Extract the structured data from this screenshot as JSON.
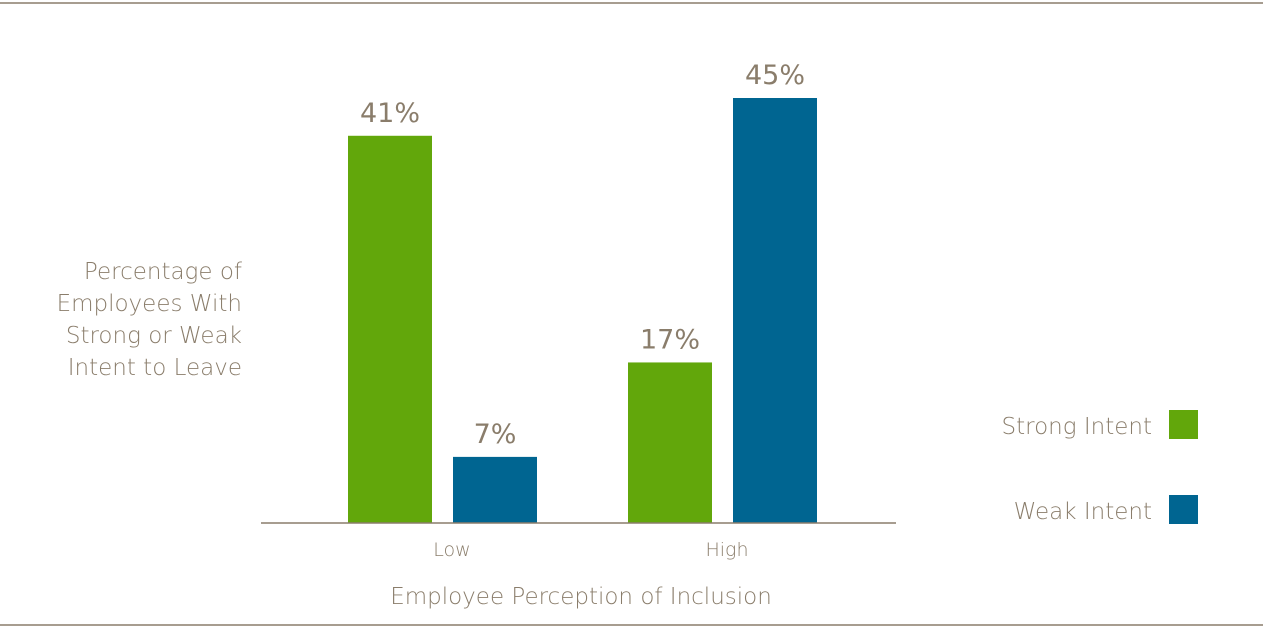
{
  "chart_data": {
    "type": "bar",
    "categories": [
      "Low",
      "High"
    ],
    "series": [
      {
        "name": "Strong Intent",
        "values": [
          41,
          17
        ],
        "color": "#62a70b"
      },
      {
        "name": "Weak Intent",
        "values": [
          7,
          45
        ],
        "color": "#006591"
      }
    ],
    "value_suffix": "%",
    "ylabel_lines": [
      "Percentage of",
      "Employees With",
      "Strong or Weak",
      "Intent to Leave"
    ],
    "xlabel": "Employee Perception of Inclusion",
    "ylim": [
      0,
      50
    ],
    "grid": false,
    "legend_position": "right"
  },
  "colors": {
    "text": "#8a7d6b",
    "rule": "#8a7d6b",
    "axis": "#8a7d6b"
  }
}
